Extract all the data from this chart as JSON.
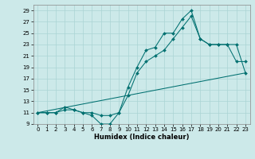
{
  "xlabel": "Humidex (Indice chaleur)",
  "bg_color": "#cce9e9",
  "grid_color": "#aad4d4",
  "line_color": "#007070",
  "xlim": [
    -0.5,
    23.5
  ],
  "ylim": [
    9,
    30
  ],
  "xticks": [
    0,
    1,
    2,
    3,
    4,
    5,
    6,
    7,
    8,
    9,
    10,
    11,
    12,
    13,
    14,
    15,
    16,
    17,
    18,
    19,
    20,
    21,
    22,
    23
  ],
  "yticks": [
    9,
    11,
    13,
    15,
    17,
    19,
    21,
    23,
    25,
    27,
    29
  ],
  "line1_x": [
    0,
    1,
    2,
    3,
    4,
    5,
    6,
    7,
    8,
    9,
    10,
    11,
    12,
    13,
    14,
    15,
    16,
    17,
    18,
    19,
    20,
    21,
    22,
    23
  ],
  "line1_y": [
    11,
    11,
    11,
    11.5,
    11.5,
    11,
    10.5,
    9,
    9,
    11,
    15.5,
    19,
    22,
    22.5,
    25,
    25,
    27.5,
    29,
    24,
    23,
    23,
    23,
    20,
    20
  ],
  "line2_x": [
    0,
    1,
    2,
    3,
    4,
    5,
    6,
    7,
    8,
    9,
    10,
    11,
    12,
    13,
    14,
    15,
    16,
    17,
    18,
    19,
    20,
    21,
    22,
    23
  ],
  "line2_y": [
    11,
    11,
    11,
    12,
    11.5,
    11,
    11,
    10.5,
    10.5,
    11,
    14,
    18,
    20,
    21,
    22,
    24,
    26,
    28,
    24,
    23,
    23,
    23,
    23,
    18
  ],
  "line3_x": [
    0,
    23
  ],
  "line3_y": [
    11,
    18
  ],
  "marker_size": 2.0,
  "line_width": 0.75,
  "tick_fontsize": 5.0,
  "xlabel_fontsize": 6.0
}
